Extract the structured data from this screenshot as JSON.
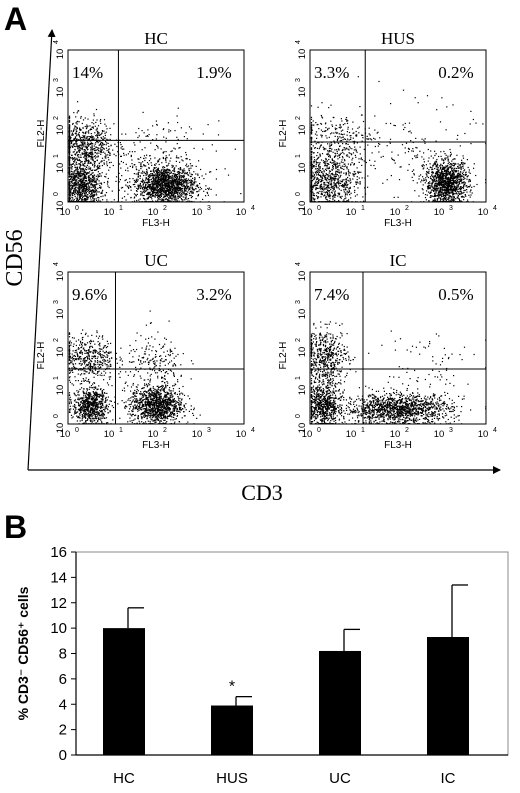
{
  "figure": {
    "panel_a_letter": "A",
    "panel_b_letter": "B",
    "panel_a_ylabel": "CD56",
    "panel_a_xlabel": "CD3"
  },
  "chart_data": [
    {
      "type": "scatter",
      "layout": "2x2 flow cytometry dot plots with quadrant gates",
      "title": "",
      "axis_scale": "log",
      "xlabel": "FL3-H",
      "ylabel": "FL2-H",
      "xlim": [
        1,
        10000
      ],
      "ylim": [
        1,
        10000
      ],
      "x_ticks": [
        "10",
        "10",
        "10",
        "10",
        "10"
      ],
      "x_tick_exponents": [
        "0",
        "1",
        "2",
        "3",
        "4"
      ],
      "y_ticks": [
        "10",
        "10",
        "10",
        "10",
        "10"
      ],
      "y_tick_exponents": [
        "0",
        "1",
        "2",
        "3",
        "4"
      ],
      "panels": [
        {
          "name": "HC",
          "ul_label": "14%",
          "ur_label": "1.9%",
          "gate_x": 14,
          "gate_y": 42
        },
        {
          "name": "HUS",
          "ul_label": "3.3%",
          "ur_label": "0.2%",
          "gate_x": 18,
          "gate_y": 38
        },
        {
          "name": "UC",
          "ul_label": "9.6%",
          "ur_label": "3.2%",
          "gate_x": 12,
          "gate_y": 28
        },
        {
          "name": "IC",
          "ul_label": "7.4%",
          "ur_label": "0.5%",
          "gate_x": 16,
          "gate_y": 28
        }
      ]
    },
    {
      "type": "bar",
      "categories": [
        "HC",
        "HUS",
        "UC",
        "IC"
      ],
      "values": [
        10,
        3.9,
        8.2,
        9.3
      ],
      "errors": [
        1.6,
        0.7,
        1.7,
        4.1
      ],
      "annotations": [
        "",
        "*",
        "",
        ""
      ],
      "title": "",
      "xlabel": "",
      "ylabel": "% CD3⁻ CD56⁺ cells",
      "ylim": [
        0,
        16
      ],
      "yticks": [
        0,
        2,
        4,
        6,
        8,
        10,
        12,
        14,
        16
      ],
      "grid": false,
      "legend": "none",
      "bar_color": "#000000"
    }
  ]
}
